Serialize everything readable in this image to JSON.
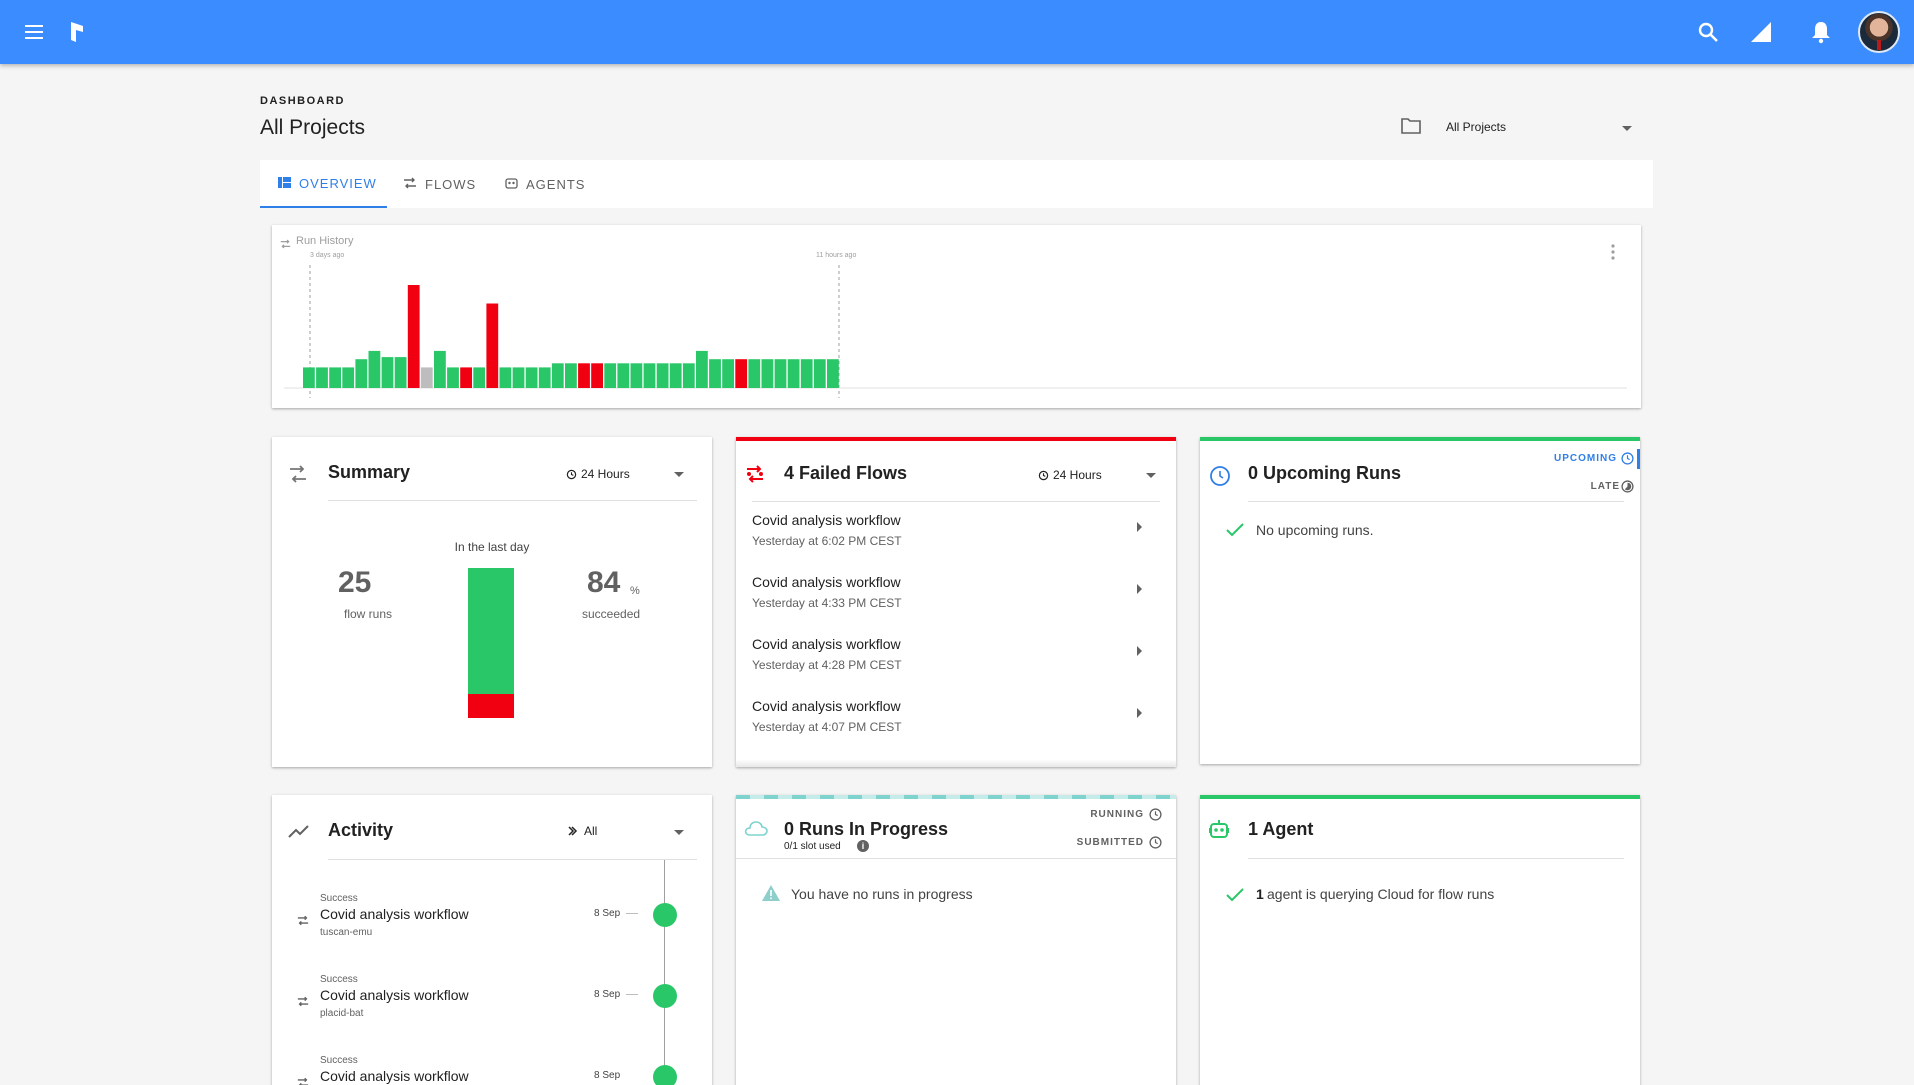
{
  "header": {
    "menu_icon": "menu-icon",
    "logo_icon": "prefect-logo-icon",
    "search_icon": "search-icon",
    "signal_icon": "signal-icon",
    "bell_icon": "bell-icon"
  },
  "page": {
    "breadcrumb": "DASHBOARD",
    "title": "All Projects",
    "project_select": "All Projects"
  },
  "tabs": [
    {
      "label": "OVERVIEW"
    },
    {
      "label": "FLOWS"
    },
    {
      "label": "AGENTS"
    }
  ],
  "run_history": {
    "title": "Run History",
    "marker_left": "3 days ago",
    "marker_right": "11 hours ago"
  },
  "chart_data": {
    "type": "bar",
    "title": "Run History",
    "values": [
      20,
      20,
      20,
      20,
      28,
      36,
      30,
      30,
      100,
      20,
      36,
      20,
      20,
      20,
      82,
      20,
      20,
      20,
      20,
      24,
      24,
      24,
      24,
      24,
      24,
      24,
      24,
      24,
      24,
      24,
      36,
      28,
      28,
      28,
      28,
      28,
      28,
      28,
      28,
      28,
      28
    ],
    "states": [
      "s",
      "s",
      "s",
      "s",
      "s",
      "s",
      "s",
      "s",
      "f",
      "p",
      "s",
      "s",
      "f",
      "s",
      "f",
      "s",
      "s",
      "s",
      "s",
      "s",
      "s",
      "f",
      "f",
      "s",
      "s",
      "s",
      "s",
      "s",
      "s",
      "s",
      "s",
      "s",
      "s",
      "f",
      "s",
      "s",
      "s",
      "s",
      "s",
      "s",
      "s"
    ],
    "colors": {
      "s": "#2ac769",
      "f": "#f00010",
      "p": "#bdbdbd"
    }
  },
  "summary": {
    "title": "Summary",
    "range": "24 Hours",
    "caption": "In the last day",
    "runs_value": "25",
    "runs_label": "flow runs",
    "pct_value": "84",
    "pct_unit": "%",
    "pct_label": "succeeded",
    "success_fraction": 0.84
  },
  "failed": {
    "title": "4 Failed Flows",
    "range": "24 Hours",
    "items": [
      {
        "name": "Covid analysis workflow",
        "time": "Yesterday at 6:02 PM CEST"
      },
      {
        "name": "Covid analysis workflow",
        "time": "Yesterday at 4:33 PM CEST"
      },
      {
        "name": "Covid analysis workflow",
        "time": "Yesterday at 4:28 PM CEST"
      },
      {
        "name": "Covid analysis workflow",
        "time": "Yesterday at 4:07 PM CEST"
      }
    ]
  },
  "upcoming": {
    "title": "0 Upcoming Runs",
    "tab_upcoming": "UPCOMING",
    "tab_late": "LATE",
    "empty": "No upcoming runs."
  },
  "activity": {
    "title": "Activity",
    "filter": "All",
    "items": [
      {
        "status": "Success",
        "name": "Covid analysis workflow",
        "run": "tuscan-emu",
        "date": "8 Sep"
      },
      {
        "status": "Success",
        "name": "Covid analysis workflow",
        "run": "placid-bat",
        "date": "8 Sep"
      },
      {
        "status": "Success",
        "name": "Covid analysis workflow",
        "run": "",
        "date": "8 Sep"
      }
    ]
  },
  "in_progress": {
    "title": "0 Runs In Progress",
    "slots": "0/1 slot used",
    "tab_running": "RUNNING",
    "tab_submitted": "SUBMITTED",
    "empty": "You have no runs in progress"
  },
  "agents": {
    "title": "1 Agent",
    "count": "1",
    "message": "agent is querying Cloud for flow runs"
  },
  "colors": {
    "topbar": "#3b8dff",
    "accent": "#2f7fe8",
    "success": "#2ac769",
    "failed": "#f00010",
    "teal": "#7fd3cf"
  }
}
